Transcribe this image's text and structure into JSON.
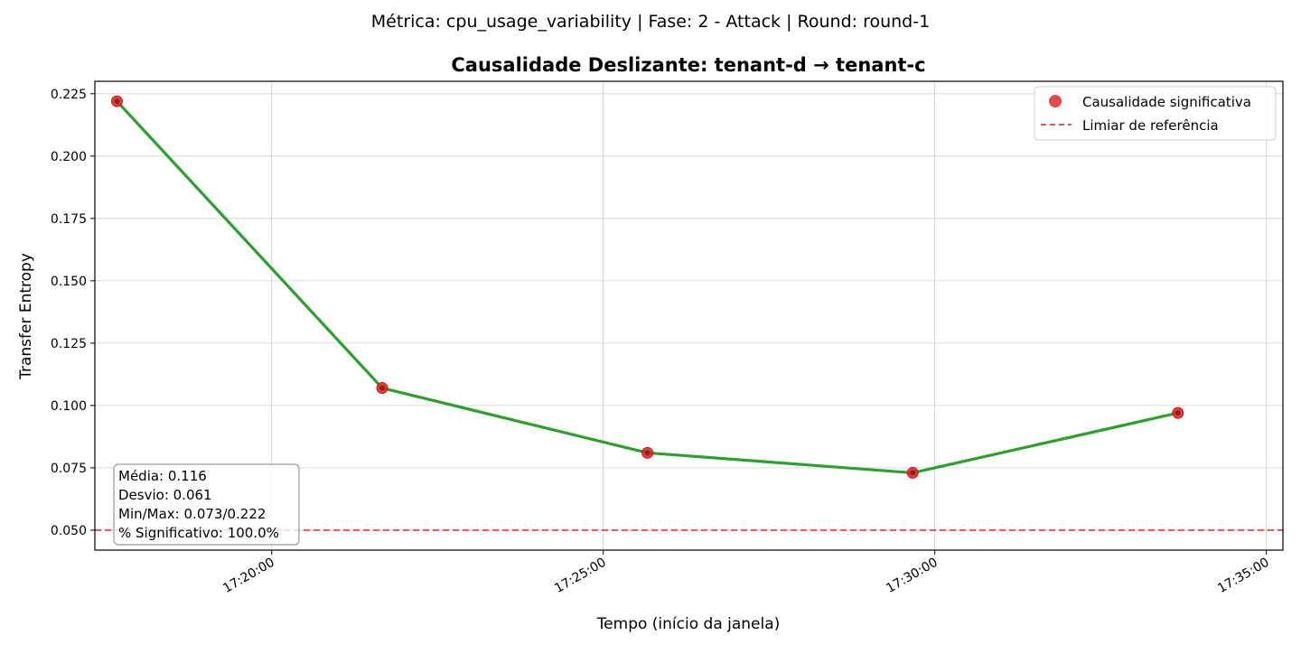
{
  "suptitle": "Métrica: cpu_usage_variability | Fase: 2 - Attack | Round: round-1",
  "chart_data": {
    "type": "line",
    "title": "Causalidade Deslizante: tenant-d → tenant-c",
    "xlabel": "Tempo (início da janela)",
    "ylabel": "Transfer Entropy",
    "x": [
      "17:17:40",
      "17:21:40",
      "17:25:40",
      "17:29:40",
      "17:33:40"
    ],
    "series": [
      {
        "values": [
          0.222,
          0.107,
          0.081,
          0.073,
          0.097
        ],
        "color": "#2ca02c"
      }
    ],
    "significant_points": [
      0.222,
      0.107,
      0.081,
      0.073,
      0.097
    ],
    "threshold": 0.05,
    "xlim": [
      "17:17:20",
      "17:35:15"
    ],
    "ylim": [
      0.042,
      0.23
    ],
    "x_ticks": [
      "17:20:00",
      "17:25:00",
      "17:30:00",
      "17:35:00"
    ],
    "y_ticks": [
      "0.050",
      "0.075",
      "0.100",
      "0.125",
      "0.150",
      "0.175",
      "0.200",
      "0.225"
    ],
    "grid": true,
    "legend": {
      "placement": "top-right",
      "entries": [
        {
          "label": "Causalidade significativa",
          "color": "#e8282a",
          "marker": "circle"
        },
        {
          "label": "Limiar de referência",
          "color": "#e8282a",
          "marker": "dashed-line"
        }
      ]
    },
    "stats_box": {
      "lines": [
        "Média: 0.116",
        "Desvio: 0.061",
        "Min/Max: 0.073/0.222",
        "% Significativo: 100.0%"
      ],
      "placement": "bottom-left"
    }
  }
}
